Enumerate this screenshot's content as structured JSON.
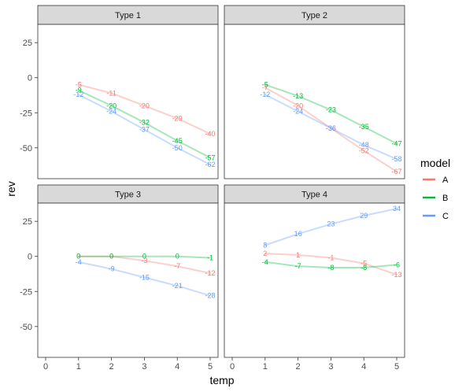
{
  "chart_data": {
    "type": "line",
    "xlabel": "temp",
    "ylabel": "rev",
    "xlim": [
      0,
      5
    ],
    "ylim": [
      -72,
      38
    ],
    "x_ticks": [
      0,
      1,
      2,
      3,
      4,
      5
    ],
    "y_ticks": [
      25,
      0,
      -25,
      -50
    ],
    "grid": false,
    "legend": {
      "title": "model",
      "placement": "right",
      "entries": [
        {
          "label": "A",
          "color": "#F8766D"
        },
        {
          "label": "B",
          "color": "#00BA38"
        },
        {
          "label": "C",
          "color": "#619CFF"
        }
      ]
    },
    "panels": [
      {
        "title": "Type 1",
        "series": [
          {
            "name": "A",
            "color": "#F8766D",
            "x": [
              1,
              2,
              3,
              4,
              5
            ],
            "values": [
              -5,
              -11,
              -20,
              -29,
              -40
            ]
          },
          {
            "name": "B",
            "color": "#00BA38",
            "x": [
              1,
              2,
              3,
              4,
              5
            ],
            "values": [
              -9,
              -20,
              -32,
              -45,
              -57
            ]
          },
          {
            "name": "C",
            "color": "#619CFF",
            "x": [
              1,
              2,
              3,
              4,
              5
            ],
            "values": [
              -12,
              -24,
              -37,
              -50,
              -62
            ]
          }
        ]
      },
      {
        "title": "Type 2",
        "series": [
          {
            "name": "A",
            "color": "#F8766D",
            "x": [
              1,
              2,
              3,
              4,
              5
            ],
            "values": [
              -7,
              -20,
              -36,
              -52,
              -67
            ]
          },
          {
            "name": "B",
            "color": "#00BA38",
            "x": [
              1,
              2,
              3,
              4,
              5
            ],
            "values": [
              -5,
              -13,
              -23,
              -35,
              -47
            ]
          },
          {
            "name": "C",
            "color": "#619CFF",
            "x": [
              1,
              2,
              3,
              4,
              5
            ],
            "values": [
              -12,
              -24,
              -36,
              -48,
              -58
            ]
          }
        ]
      },
      {
        "title": "Type 3",
        "series": [
          {
            "name": "A",
            "color": "#F8766D",
            "x": [
              1,
              2,
              3,
              4,
              5
            ],
            "values": [
              0,
              0,
              -3,
              -7,
              -12
            ]
          },
          {
            "name": "B",
            "color": "#00BA38",
            "x": [
              1,
              2,
              3,
              4,
              5
            ],
            "values": [
              0,
              0,
              0,
              0,
              -1
            ]
          },
          {
            "name": "C",
            "color": "#619CFF",
            "x": [
              1,
              2,
              3,
              4,
              5
            ],
            "values": [
              -4,
              -9,
              -15,
              -21,
              -28
            ]
          }
        ]
      },
      {
        "title": "Type 4",
        "series": [
          {
            "name": "A",
            "color": "#F8766D",
            "x": [
              1,
              2,
              3,
              4,
              5
            ],
            "values": [
              2,
              1,
              -1,
              -5,
              -13
            ]
          },
          {
            "name": "B",
            "color": "#00BA38",
            "x": [
              1,
              2,
              3,
              4,
              5
            ],
            "values": [
              -4,
              -7,
              -8,
              -8,
              -6
            ]
          },
          {
            "name": "C",
            "color": "#619CFF",
            "x": [
              1,
              2,
              3,
              4,
              5
            ],
            "values": [
              8,
              16,
              23,
              29,
              34
            ]
          }
        ]
      }
    ]
  }
}
